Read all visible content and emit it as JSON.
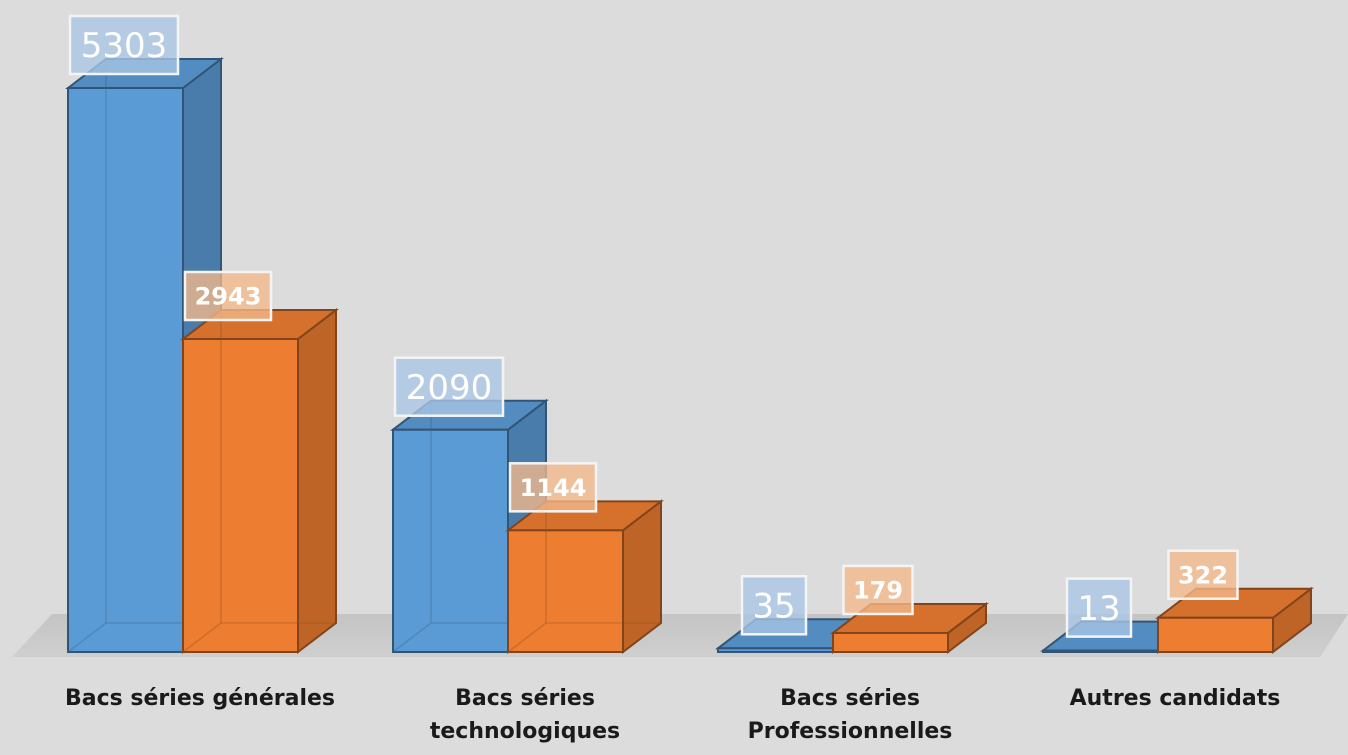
{
  "chart_data": {
    "type": "bar",
    "categories": [
      "Bacs séries générales",
      "Bacs  séries\ntechnologiques",
      "Bacs séries\nProfessionnelles",
      "Autres candidats"
    ],
    "series": [
      {
        "values": [
          5303,
          2090,
          35,
          13
        ],
        "color": "#5b9bd5"
      },
      {
        "values": [
          2943,
          1144,
          179,
          322
        ],
        "color": "#ed7d31"
      }
    ],
    "ylim": [
      0,
      5303
    ],
    "grid": false,
    "legend": "none",
    "style": "3d-column"
  }
}
